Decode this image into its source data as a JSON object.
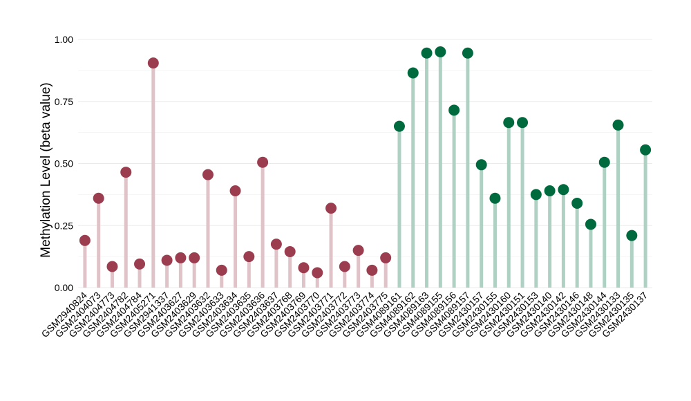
{
  "chart_data": {
    "type": "lollipop",
    "xlabel": "",
    "ylabel": "Methylation Level (beta value)",
    "ylim": [
      0,
      1
    ],
    "yticks": [
      "0.00",
      "0.25",
      "0.50",
      "0.75",
      "1.00"
    ],
    "ytick_values": [
      0,
      0.25,
      0.5,
      0.75,
      1.0
    ],
    "grid": true,
    "legend": "none",
    "colors": {
      "group1_point": "#9b3d4f",
      "group1_stem": "#dfc3c9",
      "group2_point": "#006a3f",
      "group2_stem": "#afd1c4",
      "grid": "#ebebeb"
    },
    "categories": [
      "GSM2940824",
      "GSM2404073",
      "GSM2404773",
      "GSM2404782",
      "GSM2404784",
      "GSM2405271",
      "GSM2941337",
      "GSM2403627",
      "GSM2403629",
      "GSM2403632",
      "GSM2403633",
      "GSM2403634",
      "GSM2403635",
      "GSM2403636",
      "GSM2403637",
      "GSM2403768",
      "GSM2403769",
      "GSM2403770",
      "GSM2403771",
      "GSM2403772",
      "GSM2403773",
      "GSM2403774",
      "GSM2403775",
      "GSM4089161",
      "GSM4089162",
      "GSM4089163",
      "GSM4089155",
      "GSM4089156",
      "GSM4089157",
      "GSM2430157",
      "GSM2430155",
      "GSM2430160",
      "GSM2430151",
      "GSM2430153",
      "GSM2430140",
      "GSM2430142",
      "GSM2430146",
      "GSM2430148",
      "GSM2430144",
      "GSM2430133",
      "GSM2430135",
      "GSM2430137"
    ],
    "values": [
      0.19,
      0.36,
      0.085,
      0.465,
      0.095,
      0.905,
      0.11,
      0.12,
      0.12,
      0.455,
      0.07,
      0.39,
      0.125,
      0.505,
      0.175,
      0.145,
      0.08,
      0.06,
      0.32,
      0.085,
      0.15,
      0.07,
      0.12,
      0.65,
      0.865,
      0.945,
      0.95,
      0.715,
      0.945,
      0.495,
      0.36,
      0.665,
      0.665,
      0.375,
      0.39,
      0.395,
      0.34,
      0.255,
      0.505,
      0.655,
      0.21,
      0.555
    ],
    "groups": [
      1,
      1,
      1,
      1,
      1,
      1,
      1,
      1,
      1,
      1,
      1,
      1,
      1,
      1,
      1,
      1,
      1,
      1,
      1,
      1,
      1,
      1,
      1,
      2,
      2,
      2,
      2,
      2,
      2,
      2,
      2,
      2,
      2,
      2,
      2,
      2,
      2,
      2,
      2,
      2,
      2,
      2
    ]
  }
}
